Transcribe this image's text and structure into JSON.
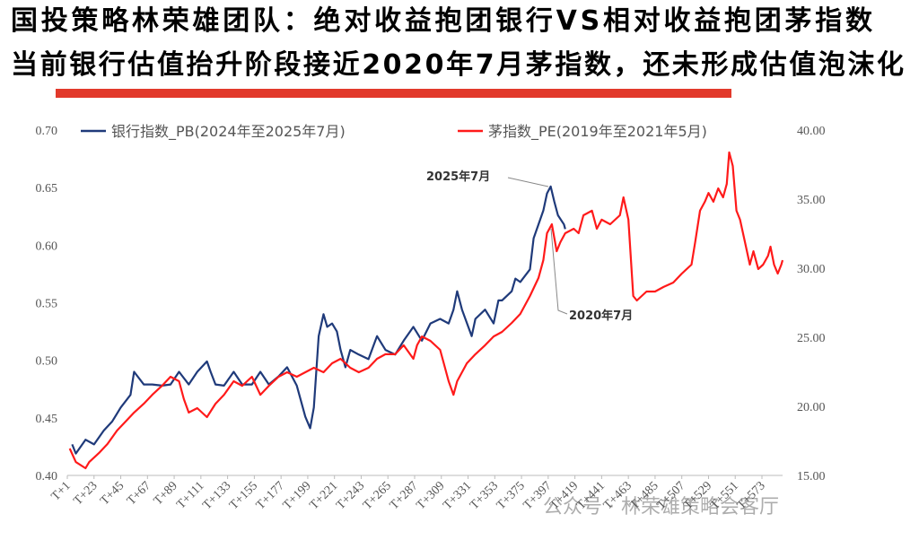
{
  "chart_data": {
    "type": "line",
    "title": "国投策略林荣雄团队：绝对收益抱团银行VS相对收益抱团茅指数",
    "subtitle": "当前银行估值抬升阶段接近2020年7月茅指数，还未形成估值泡沫化",
    "annotations": [
      "2025年7月",
      "2020年7月"
    ],
    "watermark": "公众号 · 林荣雄策略会客厅",
    "legend": "top",
    "xlim": [
      1,
      590
    ],
    "xticks": [
      {
        "value": 1,
        "label": "T+1"
      },
      {
        "value": 23,
        "label": "T+23"
      },
      {
        "value": 45,
        "label": "T+45"
      },
      {
        "value": 67,
        "label": "T+67"
      },
      {
        "value": 89,
        "label": "T+89"
      },
      {
        "value": 111,
        "label": "T+111"
      },
      {
        "value": 133,
        "label": "T+133"
      },
      {
        "value": 155,
        "label": "T+155"
      },
      {
        "value": 177,
        "label": "T+177"
      },
      {
        "value": 199,
        "label": "T+199"
      },
      {
        "value": 221,
        "label": "T+221"
      },
      {
        "value": 243,
        "label": "T+243"
      },
      {
        "value": 265,
        "label": "T+265"
      },
      {
        "value": 287,
        "label": "T+287"
      },
      {
        "value": 309,
        "label": "T+309"
      },
      {
        "value": 331,
        "label": "T+331"
      },
      {
        "value": 353,
        "label": "T+353"
      },
      {
        "value": 375,
        "label": "T+375"
      },
      {
        "value": 397,
        "label": "T+397"
      },
      {
        "value": 419,
        "label": "T+419"
      },
      {
        "value": 441,
        "label": "T+441"
      },
      {
        "value": 463,
        "label": "T+463"
      },
      {
        "value": 485,
        "label": "T+485"
      },
      {
        "value": 507,
        "label": "T+507"
      },
      {
        "value": 529,
        "label": "T+529"
      },
      {
        "value": 551,
        "label": "T+551"
      },
      {
        "value": 573,
        "label": "T+573"
      }
    ],
    "ylim": [
      0.4,
      0.7
    ],
    "yticks": [
      {
        "value": 0.4,
        "label": "0.40"
      },
      {
        "value": 0.45,
        "label": "0.45"
      },
      {
        "value": 0.5,
        "label": "0.50"
      },
      {
        "value": 0.55,
        "label": "0.55"
      },
      {
        "value": 0.6,
        "label": "0.60"
      },
      {
        "value": 0.65,
        "label": "0.65"
      },
      {
        "value": 0.7,
        "label": "0.70"
      }
    ],
    "y2lim": [
      15,
      40
    ],
    "y2ticks": [
      {
        "value": 15,
        "label": "15.00"
      },
      {
        "value": 20,
        "label": "20.00"
      },
      {
        "value": 25,
        "label": "25.00"
      },
      {
        "value": 30,
        "label": "30.00"
      },
      {
        "value": 35,
        "label": "35.00"
      },
      {
        "value": 40,
        "label": "40.00"
      }
    ],
    "series": [
      {
        "name": "银行指数_PB(2024年至2025年7月)",
        "color": "#1f3a7a",
        "axis": "y",
        "x": [
          5,
          8,
          16,
          23,
          31,
          38,
          45,
          53,
          56,
          64,
          71,
          79,
          86,
          93,
          101,
          108,
          116,
          119,
          123,
          130,
          138,
          145,
          153,
          160,
          167,
          175,
          182,
          190,
          197,
          201,
          204,
          208,
          212,
          215,
          219,
          223,
          226,
          230,
          234,
          241,
          249,
          256,
          263,
          271,
          278,
          286,
          293,
          300,
          308,
          315,
          319,
          322,
          326,
          334,
          337,
          345,
          352,
          356,
          359,
          367,
          370,
          374,
          382,
          385,
          389,
          393,
          396,
          399,
          402,
          405,
          410,
          411
        ],
        "values": [
          0.427,
          0.419,
          0.431,
          0.427,
          0.439,
          0.447,
          0.459,
          0.47,
          0.49,
          0.479,
          0.479,
          0.478,
          0.479,
          0.49,
          0.479,
          0.49,
          0.499,
          0.49,
          0.479,
          0.478,
          0.49,
          0.479,
          0.479,
          0.49,
          0.479,
          0.486,
          0.494,
          0.478,
          0.451,
          0.441,
          0.459,
          0.521,
          0.54,
          0.529,
          0.532,
          0.525,
          0.509,
          0.494,
          0.509,
          0.505,
          0.501,
          0.521,
          0.509,
          0.505,
          0.517,
          0.529,
          0.517,
          0.532,
          0.536,
          0.532,
          0.544,
          0.56,
          0.544,
          0.521,
          0.536,
          0.544,
          0.532,
          0.552,
          0.552,
          0.56,
          0.571,
          0.568,
          0.579,
          0.606,
          0.618,
          0.63,
          0.645,
          0.651,
          0.638,
          0.626,
          0.618,
          0.614
        ]
      },
      {
        "name": "茅指数_PE(2019年至2021年5月)",
        "color": "#ff1a1a",
        "axis": "y2",
        "x": [
          3,
          8,
          16,
          19,
          27,
          34,
          42,
          49,
          56,
          64,
          71,
          79,
          86,
          93,
          97,
          101,
          108,
          116,
          123,
          130,
          138,
          145,
          153,
          160,
          167,
          175,
          182,
          190,
          197,
          204,
          212,
          219,
          226,
          234,
          241,
          249,
          256,
          263,
          271,
          278,
          286,
          289,
          293,
          300,
          308,
          311,
          315,
          319,
          322,
          330,
          337,
          345,
          352,
          359,
          367,
          374,
          382,
          389,
          393,
          396,
          400,
          404,
          407,
          411,
          418,
          422,
          426,
          433,
          437,
          441,
          448,
          456,
          459,
          463,
          467,
          470,
          478,
          485,
          492,
          500,
          507,
          515,
          518,
          522,
          526,
          529,
          533,
          537,
          541,
          544,
          546,
          549,
          552,
          555,
          559,
          563,
          566,
          570,
          574,
          578,
          580,
          583,
          586,
          589,
          590
        ],
        "values": [
          16.95,
          15.97,
          15.52,
          15.97,
          16.62,
          17.27,
          18.25,
          18.9,
          19.55,
          20.19,
          20.84,
          21.49,
          22.14,
          21.82,
          20.52,
          19.55,
          19.87,
          19.22,
          20.19,
          20.84,
          21.82,
          21.49,
          22.14,
          20.84,
          21.49,
          22.14,
          22.47,
          22.14,
          22.47,
          22.79,
          22.47,
          23.12,
          23.44,
          22.79,
          22.47,
          22.79,
          23.44,
          23.77,
          23.77,
          24.42,
          23.44,
          24.42,
          25.06,
          24.74,
          24.09,
          23.12,
          21.82,
          20.84,
          21.82,
          23.12,
          23.77,
          24.42,
          25.06,
          25.39,
          26.04,
          26.69,
          27.99,
          29.29,
          30.58,
          32.53,
          33.18,
          31.23,
          31.88,
          32.53,
          32.86,
          32.53,
          33.83,
          34.16,
          32.86,
          33.51,
          33.18,
          33.83,
          35.13,
          33.51,
          27.99,
          27.66,
          28.31,
          28.31,
          28.64,
          28.96,
          29.61,
          30.26,
          31.88,
          34.16,
          34.81,
          35.45,
          34.81,
          35.78,
          35.13,
          36.1,
          38.38,
          37.4,
          34.16,
          33.51,
          31.88,
          30.26,
          31.23,
          29.94,
          30.26,
          30.9,
          31.56,
          30.26,
          29.61,
          30.26,
          30.58
        ]
      }
    ]
  }
}
